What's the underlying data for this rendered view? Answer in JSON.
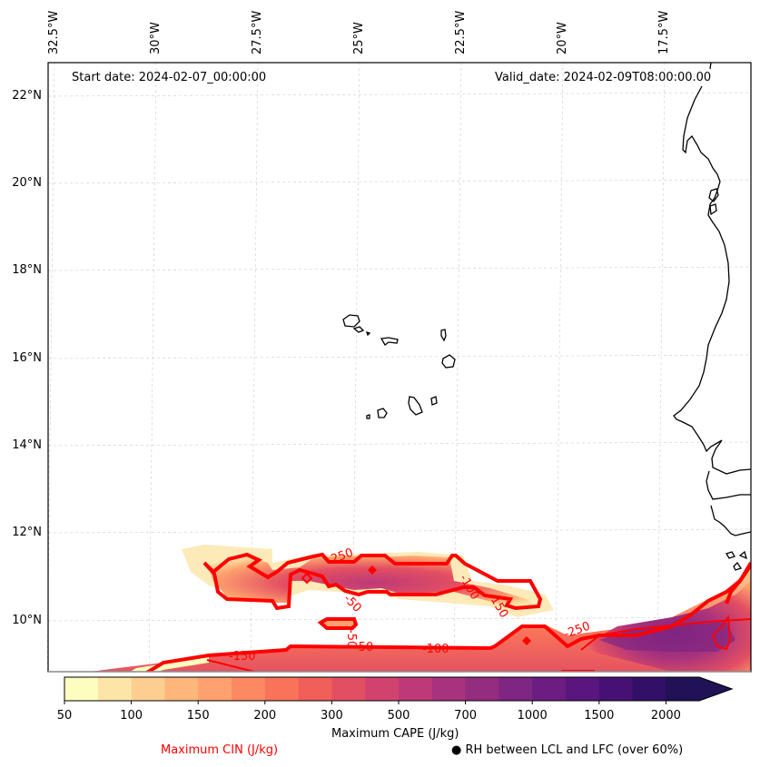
{
  "map": {
    "title_left": "Start date: 2024-02-07_00:00:00",
    "title_right": "Valid_date: 2024-02-09T08:00:00.00",
    "extent": {
      "lon_min": -32.6,
      "lon_max": -15.4,
      "lat_min": 8.9,
      "lat_max": 22.8
    },
    "lon_ticks": [
      {
        "value": -32.5,
        "label": "32.5°W"
      },
      {
        "value": -30,
        "label": "30°W"
      },
      {
        "value": -27.5,
        "label": "27.5°W"
      },
      {
        "value": -25,
        "label": "25°W"
      },
      {
        "value": -22.5,
        "label": "22.5°W"
      },
      {
        "value": -20,
        "label": "20°W"
      },
      {
        "value": -17.5,
        "label": "17.5°W"
      }
    ],
    "lat_ticks": [
      {
        "value": 22,
        "label": "22°N"
      },
      {
        "value": 20,
        "label": "20°N"
      },
      {
        "value": 18,
        "label": "18°N"
      },
      {
        "value": 16,
        "label": "16°N"
      },
      {
        "value": 14,
        "label": "14°N"
      },
      {
        "value": 12,
        "label": "12°N"
      },
      {
        "value": 10,
        "label": "10°N"
      }
    ],
    "cin_contour_labels": [
      "-250",
      "-50",
      "-100",
      "-150",
      "-50",
      "-50",
      "-100",
      "-150",
      "-250"
    ],
    "colors": {
      "cin_contour": "#ff0000",
      "coast": "#000000",
      "grid": "#cccccc"
    }
  },
  "colorbar": {
    "label": "Maximum CAPE (J/kg)",
    "tick_labels": [
      "50",
      "100",
      "150",
      "200",
      "300",
      "500",
      "700",
      "1000",
      "1500",
      "2000"
    ],
    "levels": [
      50,
      75,
      100,
      125,
      150,
      175,
      200,
      250,
      300,
      400,
      500,
      600,
      700,
      850,
      1000,
      1250,
      1500,
      1750,
      2000
    ],
    "bin_colors": [
      "#fcfdbf",
      "#fde5a7",
      "#fece91",
      "#feb67b",
      "#fea16e",
      "#fc8961",
      "#f8735a",
      "#f05f5a",
      "#e34f62",
      "#d2426f",
      "#bd3977",
      "#a8327d",
      "#942c80",
      "#7f2582",
      "#6b1d81",
      "#5a167e",
      "#471173",
      "#331067",
      "#201255"
    ],
    "extend": "max"
  },
  "legend": {
    "cin_label": "Maximum CIN (J/kg)",
    "cin_color": "#ff0000",
    "rh_marker": "●",
    "rh_label": "RH between LCL and LFC (over 60%)"
  }
}
